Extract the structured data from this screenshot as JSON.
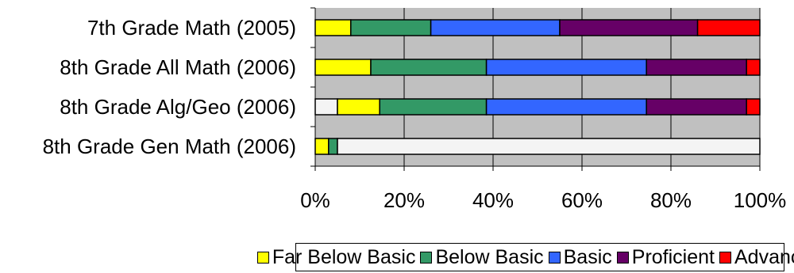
{
  "chart_data": {
    "type": "bar",
    "orientation": "horizontal",
    "stacked": true,
    "categories": [
      "7th Grade Math (2005)",
      "8th Grade All Math (2006)",
      "8th Grade Alg/Geo (2006)",
      "8th Grade Gen Math (2006)"
    ],
    "xlim": [
      0,
      100
    ],
    "x_ticks": [
      "0%",
      "20%",
      "40%",
      "60%",
      "80%",
      "100%"
    ],
    "series": [
      {
        "name": "",
        "color": "#f4f4f4",
        "values": [
          0,
          0,
          5,
          0
        ]
      },
      {
        "name": "Far Below Basic",
        "color": "#ffff00",
        "values": [
          8,
          12.5,
          9.5,
          3
        ]
      },
      {
        "name": "Below Basic",
        "color": "#339966",
        "values": [
          18,
          26,
          24,
          2
        ]
      },
      {
        "name": "Basic",
        "color": "#3366ff",
        "values": [
          29,
          36,
          36,
          0
        ]
      },
      {
        "name": "Proficient",
        "color": "#660066",
        "values": [
          31,
          22.5,
          22.5,
          0
        ]
      },
      {
        "name": "Advanced",
        "color": "#ff0000",
        "values": [
          14,
          3,
          3,
          0
        ]
      },
      {
        "name": "",
        "color": "#f4f4f4",
        "values": [
          0,
          0,
          0,
          95
        ]
      }
    ],
    "plot_background": "#c0c0c0",
    "grid": true,
    "legend_position": "bottom"
  },
  "legend": {
    "items": [
      {
        "label": "Far Below Basic",
        "color": "#ffff00"
      },
      {
        "label": "Below Basic",
        "color": "#339966"
      },
      {
        "label": "Basic",
        "color": "#3366ff"
      },
      {
        "label": "Proficient",
        "color": "#660066"
      },
      {
        "label": "Advanced",
        "color": "#ff0000"
      }
    ]
  }
}
